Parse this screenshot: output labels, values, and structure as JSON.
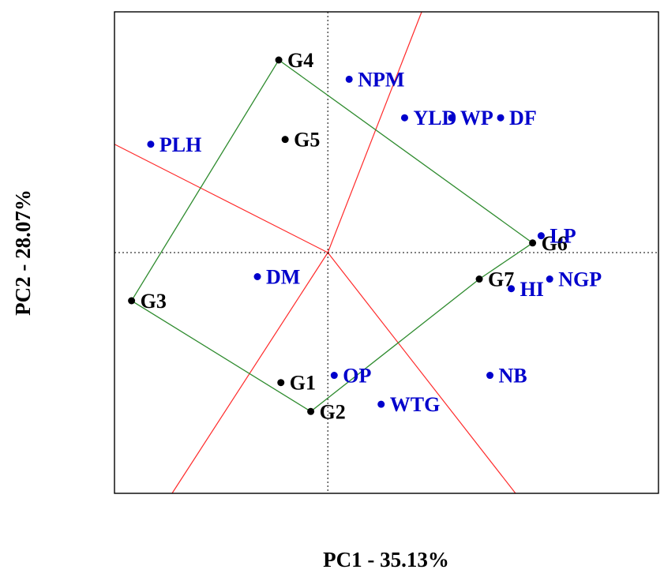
{
  "chart_data": {
    "type": "scatter",
    "title": "",
    "xlabel": "PC1 - 35.13%",
    "ylabel": "PC2 - 28.07%",
    "xlim": [
      -1.0,
      1.55
    ],
    "ylim": [
      -1.0,
      1.0
    ],
    "grid": false,
    "legend": "none",
    "reference_lines": {
      "x": 0,
      "y": 0
    },
    "colors": {
      "genotype": "#000000",
      "trait": "#0000cc",
      "polygon": "#2e8b2e",
      "sector_lines": "#ff2a2a",
      "reference": "#000000"
    },
    "series": [
      {
        "name": "",
        "kind": "genotype",
        "points": [
          {
            "label": "G1",
            "x": -0.22,
            "y": -0.54
          },
          {
            "label": "G2",
            "x": -0.08,
            "y": -0.66
          },
          {
            "label": "G3",
            "x": -0.92,
            "y": -0.2
          },
          {
            "label": "G4",
            "x": -0.23,
            "y": 0.8
          },
          {
            "label": "G5",
            "x": -0.2,
            "y": 0.47
          },
          {
            "label": "G6",
            "x": 0.96,
            "y": 0.04
          },
          {
            "label": "G7",
            "x": 0.71,
            "y": -0.11
          }
        ]
      },
      {
        "name": "",
        "kind": "trait",
        "points": [
          {
            "label": "NPM",
            "x": 0.1,
            "y": 0.72
          },
          {
            "label": "WP",
            "x": 0.58,
            "y": 0.56
          },
          {
            "label": "YLD",
            "x": 0.36,
            "y": 0.56
          },
          {
            "label": "DF",
            "x": 0.81,
            "y": 0.56
          },
          {
            "label": "PLH",
            "x": -0.83,
            "y": 0.45
          },
          {
            "label": "LP",
            "x": 1.0,
            "y": 0.07
          },
          {
            "label": "DM",
            "x": -0.33,
            "y": -0.1
          },
          {
            "label": "NGP",
            "x": 1.04,
            "y": -0.11
          },
          {
            "label": "HI",
            "x": 0.86,
            "y": -0.15
          },
          {
            "label": "OP",
            "x": 0.03,
            "y": -0.51
          },
          {
            "label": "NB",
            "x": 0.76,
            "y": -0.51
          },
          {
            "label": "WTG",
            "x": 0.25,
            "y": -0.63
          }
        ]
      }
    ],
    "polygon": [
      "G4",
      "G6",
      "G7",
      "G2",
      "G3"
    ],
    "sector_rays": [
      {
        "x": -1.0,
        "y": 0.45
      },
      {
        "x": 0.44,
        "y": 1.0
      },
      {
        "x": -0.73,
        "y": -1.0
      },
      {
        "x": 0.88,
        "y": -1.0
      }
    ]
  }
}
